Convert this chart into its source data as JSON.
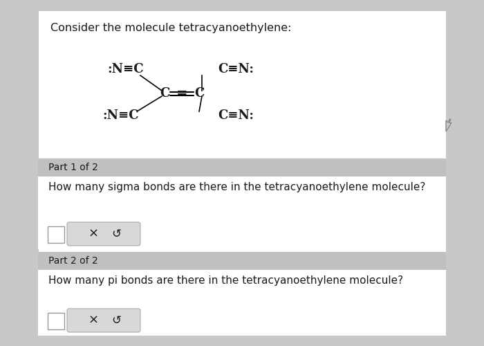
{
  "bg_color": "#c8c8c8",
  "white_bg": "#ffffff",
  "gray_header": "#c0c0c0",
  "light_gray_section": "#e8e8e8",
  "title": "Consider the molecule tetracyanoethylene:",
  "part1_header": "Part 1 of 2",
  "part1_question": "How many sigma bonds are there in the tetracyanoethylene molecule?",
  "part2_header": "Part 2 of 2",
  "part2_question": "How many pi bonds are there in the tetracyanoethylene molecule?",
  "font_size_title": 11.5,
  "font_size_question": 11,
  "font_size_part": 10,
  "font_size_molecule": 13,
  "text_color": "#1a1a1a",
  "button_bg": "#d8d8d8",
  "button_border": "#aaaaaa",
  "cursor_color": "#666666"
}
